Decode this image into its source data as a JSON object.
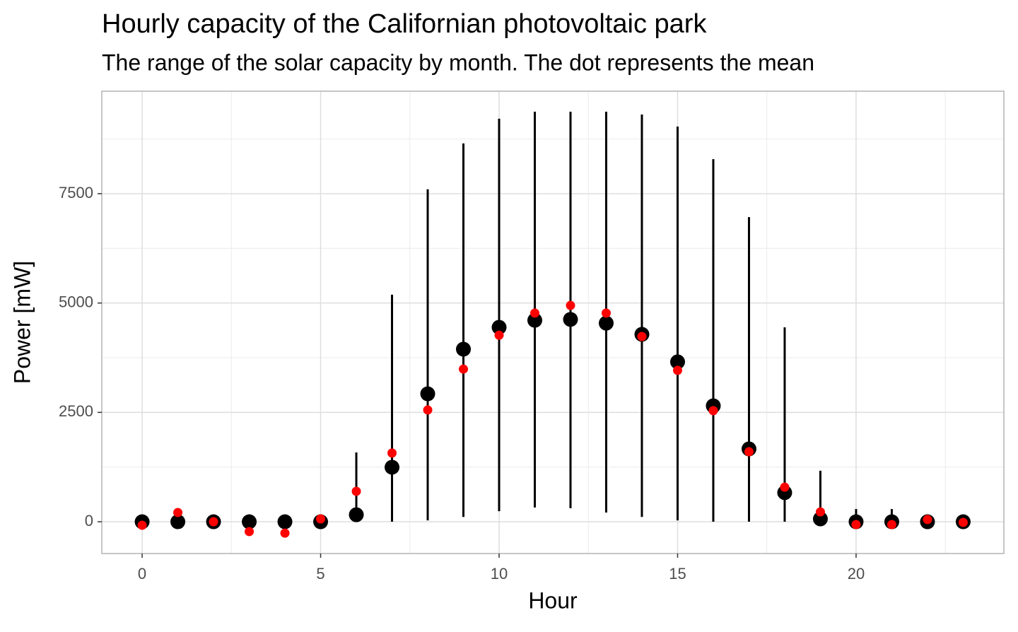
{
  "chart_data": {
    "type": "pointrange",
    "title": "Hourly capacity of the Californian photovoltaic park",
    "subtitle": "The range of the solar capacity by month. The dot represents the mean",
    "x_label": "Hour",
    "y_label": "Power [mW]",
    "x": [
      0,
      1,
      2,
      3,
      4,
      5,
      6,
      7,
      8,
      9,
      10,
      11,
      12,
      13,
      14,
      15,
      16,
      17,
      18,
      19,
      20,
      21,
      22,
      23
    ],
    "series": [
      {
        "color": "#000000",
        "values": [
          0,
          0,
          0,
          0,
          0,
          0,
          160,
          1245,
          2925,
          3945,
          4445,
          4605,
          4625,
          4540,
          4285,
          3655,
          2650,
          1665,
          665,
          65,
          0,
          0,
          0,
          0
        ],
        "min": [
          0,
          0,
          0,
          0,
          0,
          0,
          0,
          0,
          30,
          110,
          240,
          325,
          310,
          210,
          110,
          30,
          0,
          0,
          0,
          0,
          0,
          0,
          0,
          0
        ],
        "max": [
          0,
          0,
          0,
          0,
          0,
          0,
          1585,
          5190,
          7600,
          8650,
          9215,
          9375,
          9375,
          9375,
          9310,
          9035,
          8290,
          6965,
          4445,
          1165,
          290,
          290,
          0,
          0
        ]
      },
      {
        "color": "#ff0000",
        "values": [
          -80,
          210,
          0,
          -225,
          -260,
          65,
          695,
          1570,
          2555,
          3490,
          4265,
          4770,
          4945,
          4770,
          4235,
          3460,
          2540,
          1600,
          790,
          225,
          -65,
          -65,
          50,
          -15
        ]
      }
    ],
    "xlim": [
      -1.13,
      24.14
    ],
    "ylim": [
      -727,
      9843
    ],
    "xticks": [
      0,
      5,
      10,
      15,
      20
    ],
    "yticks": [
      0,
      2500,
      5000,
      7500
    ],
    "grid": true
  }
}
